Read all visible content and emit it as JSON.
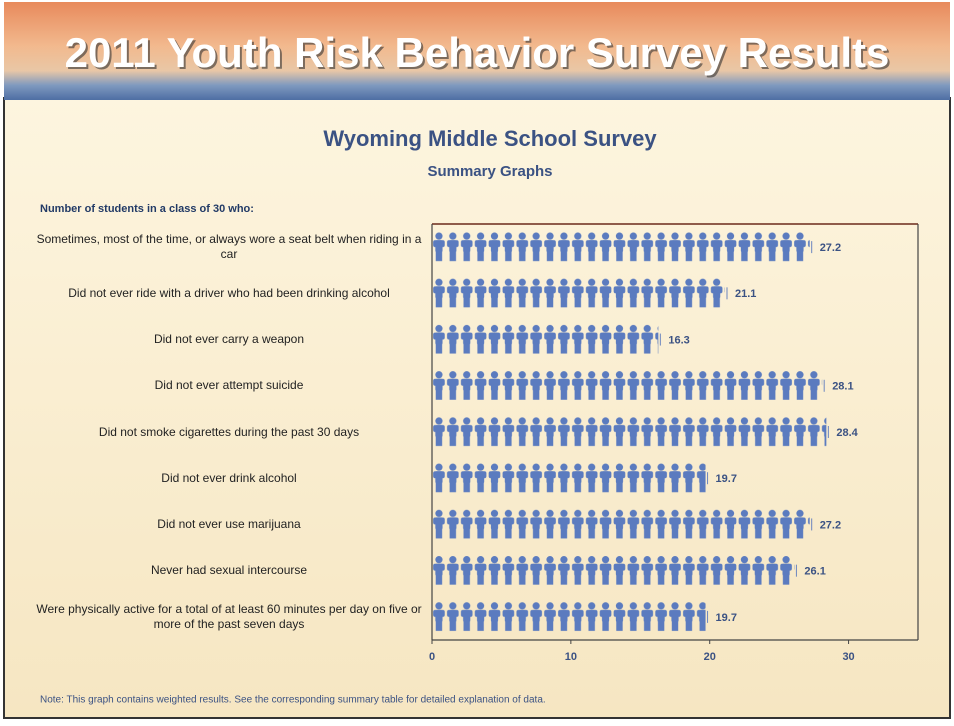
{
  "header": {
    "title": "2011 Youth Risk Behavior Survey Results"
  },
  "chart_data": {
    "type": "pictograph",
    "title": "Wyoming Middle School Survey",
    "subtitle": "Summary Graphs",
    "y_label": "Number of students in a class of 30 who:",
    "categories": [
      "Sometimes, most of the time, or always wore a seat belt when riding in a car",
      "Did not ever ride with a driver who had been drinking alcohol",
      "Did not ever carry a weapon",
      "Did not ever attempt suicide",
      "Did not smoke cigarettes during the past 30 days",
      "Did not ever drink alcohol",
      "Did not ever use marijuana",
      "Never had sexual intercourse",
      "Were physically active for a total of at least 60 minutes per day on five or more of the past seven days"
    ],
    "values": [
      27.2,
      21.1,
      16.3,
      28.1,
      28.4,
      19.7,
      27.2,
      26.1,
      19.7
    ],
    "color": "#5b7bbf",
    "xlim": [
      0,
      35
    ],
    "xticks": [
      0,
      10,
      20,
      30
    ],
    "note": "Note: This graph contains weighted results. See the corresponding summary table for detailed explanation of data."
  }
}
